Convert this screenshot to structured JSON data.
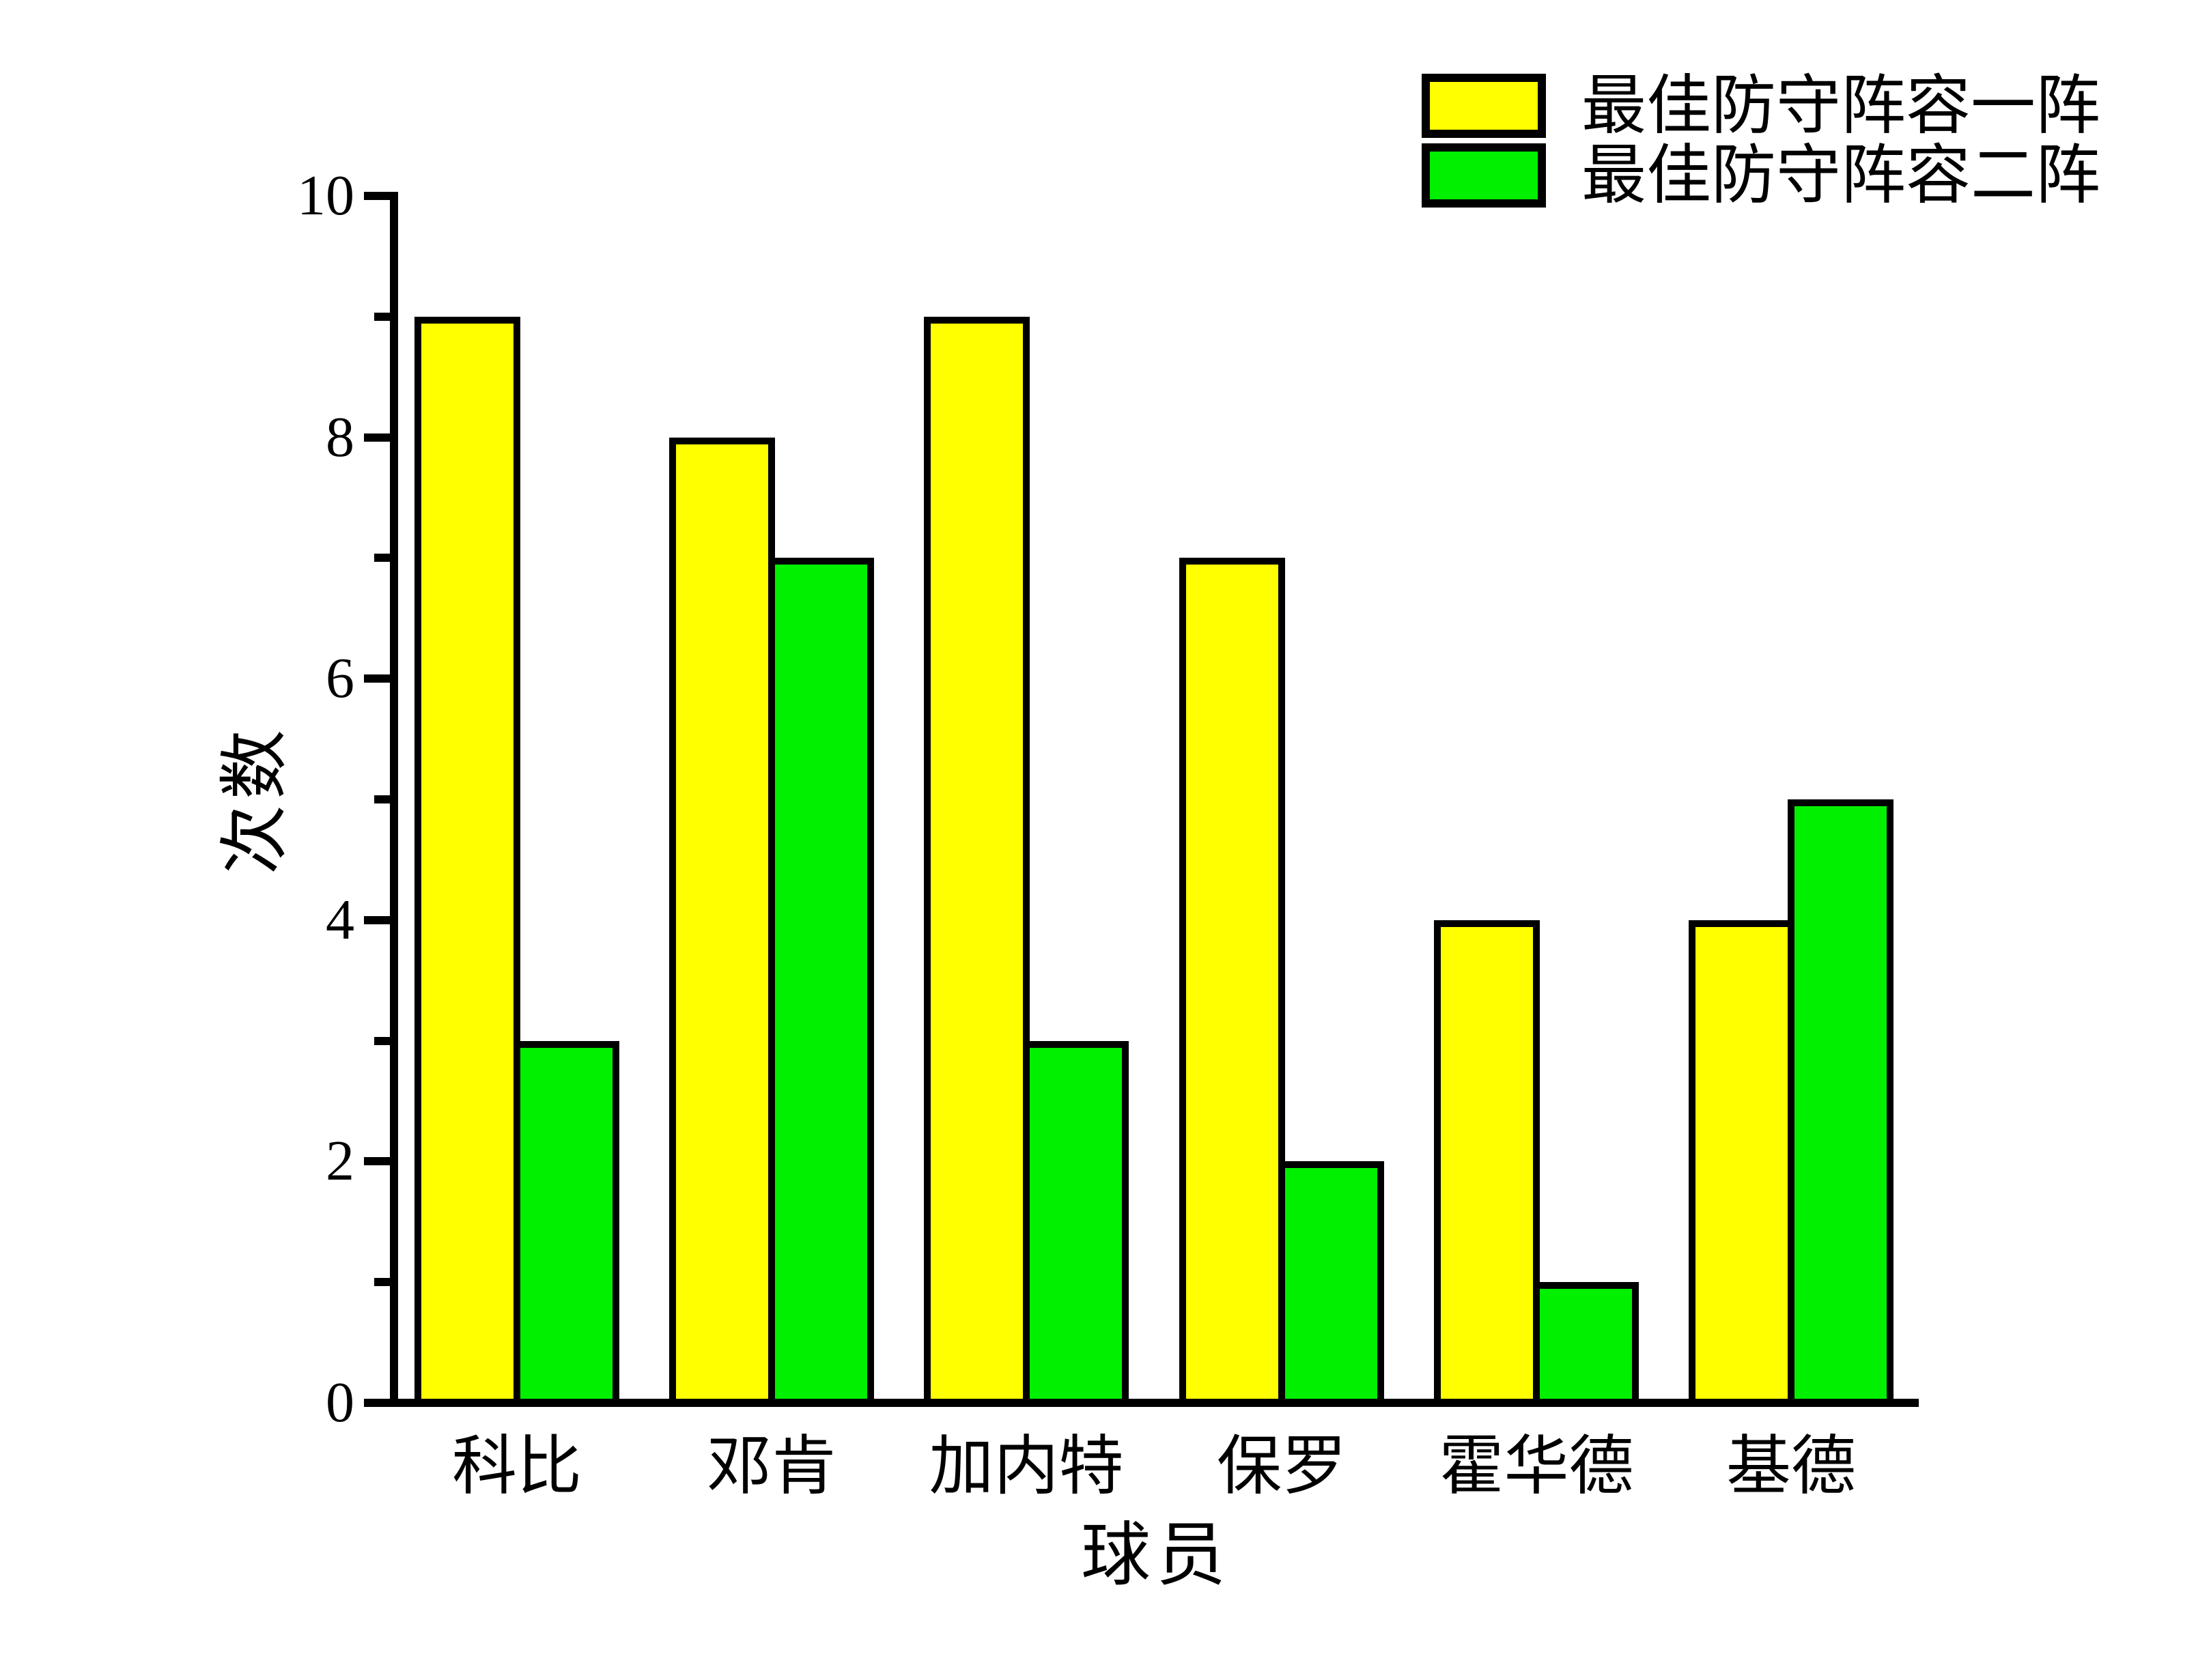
{
  "chart_data": {
    "type": "bar",
    "title": "",
    "categories": [
      "科比",
      "邓肯",
      "加内特",
      "保罗",
      "霍华德",
      "基德"
    ],
    "series": [
      {
        "name": "最佳防守阵容一阵",
        "color": "#FFFF00",
        "values": [
          9,
          8,
          9,
          7,
          4,
          4
        ]
      },
      {
        "name": "最佳防守阵容二阵",
        "color": "#00F000",
        "values": [
          3,
          7,
          3,
          2,
          1,
          5
        ]
      }
    ],
    "xlabel": "球员",
    "ylabel": "次数",
    "ylim": [
      0,
      10
    ],
    "yticks": [
      0,
      2,
      4,
      6,
      8,
      10
    ],
    "minor_yticks": [
      1,
      3,
      5,
      7,
      9
    ],
    "grid": false,
    "legend_position": "top-right",
    "bar_edge_color": "#000000",
    "axis_color": "#000000",
    "background_color": "#FFFFFF"
  }
}
